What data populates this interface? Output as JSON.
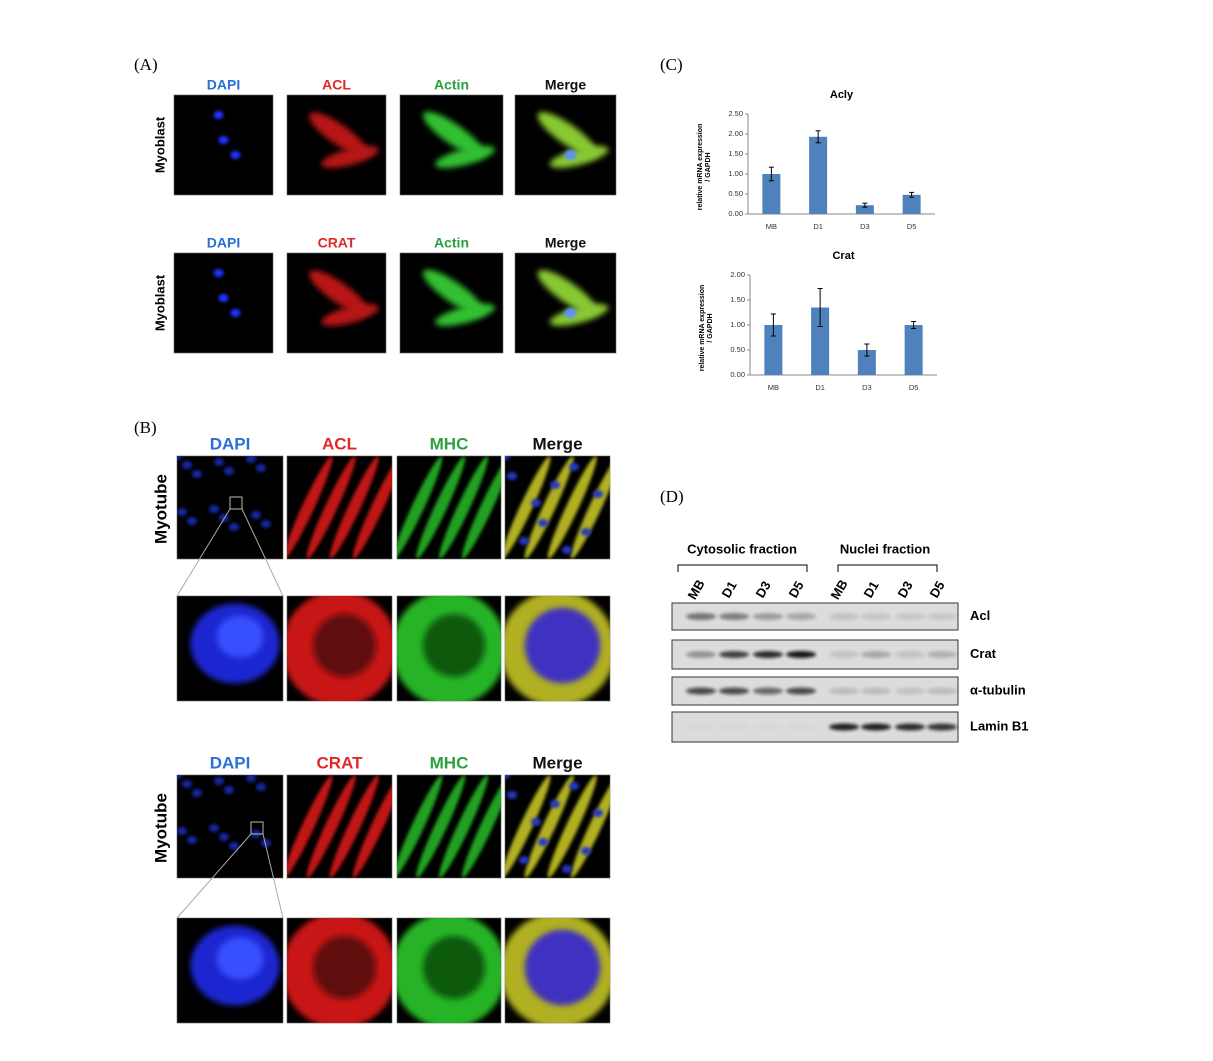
{
  "panels": {
    "A": {
      "label": "(A)",
      "rows": [
        {
          "row_label": "Myoblast",
          "channels": [
            "DAPI",
            "ACL",
            "Actin",
            "Merge"
          ]
        },
        {
          "row_label": "Myoblast",
          "channels": [
            "DAPI",
            "CRAT",
            "Actin",
            "Merge"
          ]
        }
      ]
    },
    "B": {
      "label": "(B)",
      "rows": [
        {
          "row_label": "Myotube",
          "channels": [
            "DAPI",
            "ACL",
            "MHC",
            "Merge"
          ]
        },
        {
          "row_label": "Myotube",
          "channels": [
            "DAPI",
            "CRAT",
            "MHC",
            "Merge"
          ]
        }
      ]
    },
    "C": {
      "label": "(C)"
    },
    "D": {
      "label": "(D)",
      "fractions": [
        "Cytosolic fraction",
        "Nuclei fraction"
      ],
      "lanes": [
        "MB",
        "D1",
        "D3",
        "D5",
        "MB",
        "D1",
        "D3",
        "D5"
      ],
      "proteins": [
        "Acl",
        "Crat",
        "α-tubulin",
        "Lamin B1"
      ]
    }
  },
  "chart_data": [
    {
      "type": "bar",
      "title": "Acly",
      "ylabel": [
        "relative mRNA expression",
        "/ GAPDH"
      ],
      "categories": [
        "MB",
        "D1",
        "D3",
        "D5"
      ],
      "values": [
        1.0,
        1.93,
        0.22,
        0.48
      ],
      "errors": [
        0.17,
        0.15,
        0.05,
        0.06
      ],
      "color": "#4f81bd",
      "ylim": [
        0,
        2.5
      ],
      "yticks": [
        {
          "value": 0,
          "label": "0.00"
        },
        {
          "value": 0.5,
          "label": "0.50"
        },
        {
          "value": 1,
          "label": "1.00"
        },
        {
          "value": 1.5,
          "label": "1.50"
        },
        {
          "value": 2,
          "label": "2.00"
        },
        {
          "value": 2.5,
          "label": "2.50"
        }
      ]
    },
    {
      "type": "bar",
      "title": "Crat",
      "ylabel": [
        "relative mRNA expression",
        "/ GAPDH"
      ],
      "categories": [
        "MB",
        "D1",
        "D3",
        "D5"
      ],
      "values": [
        1.0,
        1.35,
        0.5,
        1.0
      ],
      "errors": [
        0.22,
        0.38,
        0.12,
        0.07
      ],
      "color": "#4f81bd",
      "ylim": [
        0,
        2
      ],
      "yticks": [
        {
          "value": 0,
          "label": "0.00"
        },
        {
          "value": 0.5,
          "label": "0.50"
        },
        {
          "value": 1,
          "label": "1.00"
        },
        {
          "value": 1.5,
          "label": "1.50"
        },
        {
          "value": 2,
          "label": "2.00"
        }
      ]
    }
  ]
}
